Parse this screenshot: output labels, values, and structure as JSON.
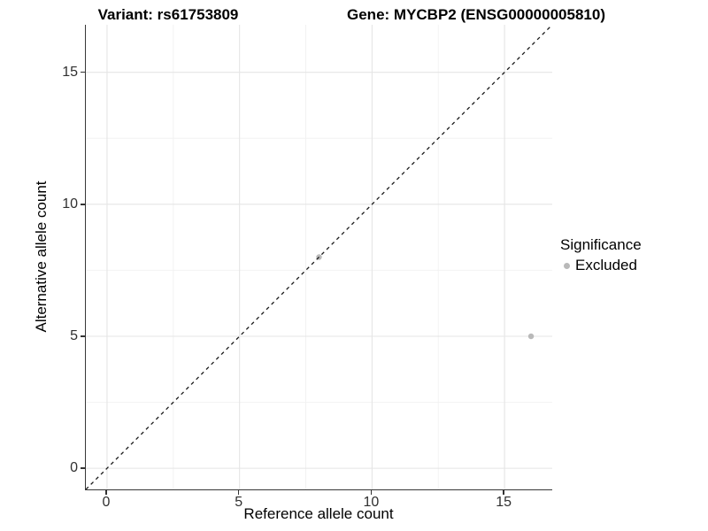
{
  "chart_data": {
    "type": "scatter",
    "title_left": "Variant: rs61753809",
    "title_right": "Gene: MYCBP2 (ENSG00000005810)",
    "xlabel": "Reference allele count",
    "ylabel": "Alternative allele count",
    "xlim": [
      -0.8,
      16.8
    ],
    "ylim": [
      -0.8,
      16.8
    ],
    "x_major_ticks": [
      0,
      5,
      10,
      15
    ],
    "y_major_ticks": [
      0,
      5,
      10,
      15
    ],
    "x_minor_gridlines": [
      2.5,
      7.5,
      12.5
    ],
    "y_minor_gridlines": [
      2.5,
      7.5,
      12.5
    ],
    "grid": "on",
    "reference_line": {
      "equation": "y = x",
      "style": "dashed",
      "color": "#1a1a1a"
    },
    "series": [
      {
        "name": "Excluded",
        "color": "#b9b9b9",
        "points": [
          {
            "x": 8,
            "y": 8
          },
          {
            "x": 16,
            "y": 5
          }
        ]
      }
    ],
    "legend": {
      "title": "Significance",
      "position": "right",
      "entries": [
        {
          "label": "Excluded",
          "color": "#b9b9b9"
        }
      ]
    },
    "colors": {
      "axis_line": "#383838",
      "tick_label": "#303030",
      "grid_major": "#e5e5e5",
      "grid_minor": "#f2f2f2"
    }
  }
}
